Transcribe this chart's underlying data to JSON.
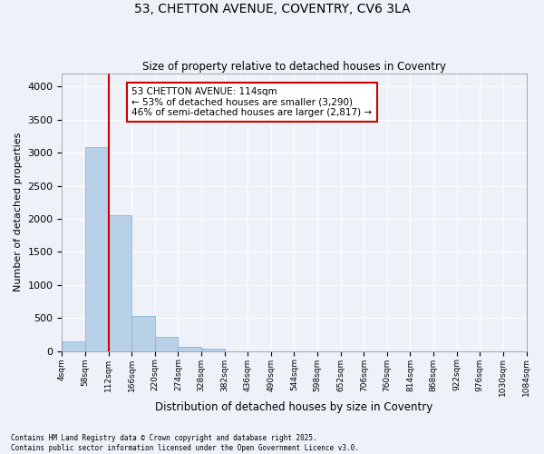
{
  "title": "53, CHETTON AVENUE, COVENTRY, CV6 3LA",
  "subtitle": "Size of property relative to detached houses in Coventry",
  "xlabel": "Distribution of detached houses by size in Coventry",
  "ylabel": "Number of detached properties",
  "annotation_title": "53 CHETTON AVENUE: 114sqm",
  "annotation_line1": "← 53% of detached houses are smaller (3,290)",
  "annotation_line2": "46% of semi-detached houses are larger (2,817) →",
  "property_size_bin": 2,
  "footer_line1": "Contains HM Land Registry data © Crown copyright and database right 2025.",
  "footer_line2": "Contains public sector information licensed under the Open Government Licence v3.0.",
  "bar_color": "#b8d0e8",
  "bar_edge_color": "#7aafd4",
  "redline_color": "#cc0000",
  "annotation_box_color": "#cc0000",
  "background_color": "#eef2f8",
  "grid_color": "#ffffff",
  "tick_labels": [
    "4sqm",
    "58sqm",
    "112sqm",
    "166sqm",
    "220sqm",
    "274sqm",
    "328sqm",
    "382sqm",
    "436sqm",
    "490sqm",
    "544sqm",
    "598sqm",
    "652sqm",
    "706sqm",
    "760sqm",
    "814sqm",
    "868sqm",
    "922sqm",
    "976sqm",
    "1030sqm",
    "1084sqm"
  ],
  "bar_heights": [
    150,
    3080,
    2060,
    530,
    220,
    60,
    30,
    0,
    0,
    0,
    0,
    0,
    0,
    0,
    0,
    0,
    0,
    0,
    0,
    0
  ],
  "n_bars": 20,
  "ylim": [
    0,
    4200
  ],
  "yticks": [
    0,
    500,
    1000,
    1500,
    2000,
    2500,
    3000,
    3500,
    4000
  ]
}
